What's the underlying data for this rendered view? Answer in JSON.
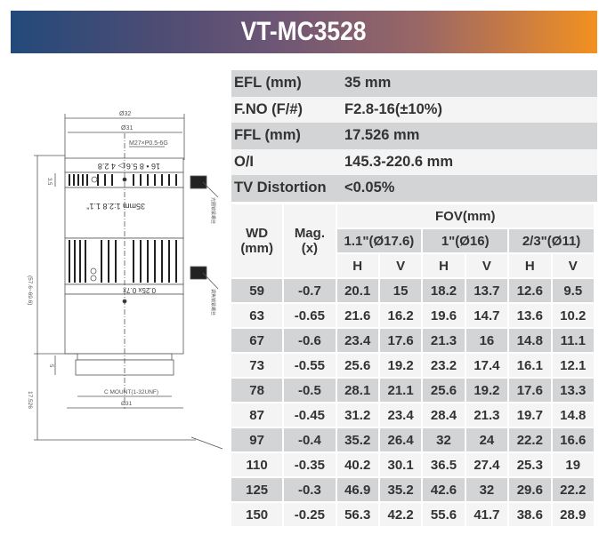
{
  "header": {
    "title": "VT-MC3528"
  },
  "specs": [
    {
      "label": "EFL (mm)",
      "value": "35 mm"
    },
    {
      "label": "F.NO (F/#)",
      "value": "F2.8-16(±10%)"
    },
    {
      "label": "FFL (mm)",
      "value": "17.526 mm"
    },
    {
      "label": "O/I",
      "value": "145.3-220.6 mm"
    },
    {
      "label": "TV Distortion",
      "value": "<0.05%"
    }
  ],
  "fov_table": {
    "col_wd": "WD",
    "col_wd_unit": "(mm)",
    "col_mag": "Mag.",
    "col_mag_unit": "(x)",
    "fov_title": "FOV(mm)",
    "sensors": [
      "1.1\"(Ø17.6)",
      "1\"(Ø16)",
      "2/3\"(Ø11)"
    ],
    "h_label": "H",
    "v_label": "V",
    "rows": [
      [
        "59",
        "-0.7",
        "20.1",
        "15",
        "18.2",
        "13.7",
        "12.6",
        "9.5"
      ],
      [
        "63",
        "-0.65",
        "21.6",
        "16.2",
        "19.6",
        "14.7",
        "13.6",
        "10.2"
      ],
      [
        "67",
        "-0.6",
        "23.4",
        "17.6",
        "21.3",
        "16",
        "14.8",
        "11.1"
      ],
      [
        "73",
        "-0.55",
        "25.6",
        "19.2",
        "23.2",
        "17.4",
        "16.1",
        "12.1"
      ],
      [
        "78",
        "-0.5",
        "28.1",
        "21.1",
        "25.6",
        "19.2",
        "17.6",
        "13.3"
      ],
      [
        "87",
        "-0.45",
        "31.2",
        "23.4",
        "28.4",
        "21.3",
        "19.7",
        "14.8"
      ],
      [
        "97",
        "-0.4",
        "35.2",
        "26.4",
        "32",
        "24",
        "22.2",
        "16.6"
      ],
      [
        "110",
        "-0.35",
        "40.2",
        "30.1",
        "36.5",
        "27.4",
        "25.3",
        "19"
      ],
      [
        "125",
        "-0.3",
        "46.9",
        "35.2",
        "42.6",
        "32",
        "29.6",
        "22.2"
      ],
      [
        "150",
        "-0.25",
        "56.3",
        "42.2",
        "55.6",
        "41.7",
        "38.6",
        "28.9"
      ]
    ]
  },
  "drawing": {
    "dim_outer": "Ø32",
    "dim_inner": "Ø31",
    "thread": "M27×P0.5-6G",
    "aperture_scale": "16 • 8 5.6 ▷ 4 2.8",
    "lens_label": "35mm 1:2.8 1.1\"",
    "focus_scale": "0.25x    0.7x",
    "ring_width": "3.5",
    "length_range": "(57.6~69.6)",
    "flange": "17.526",
    "mount_height": "5",
    "mount": "C MOUNT(1-32UNF)",
    "dim_bottom": "Ø31"
  }
}
